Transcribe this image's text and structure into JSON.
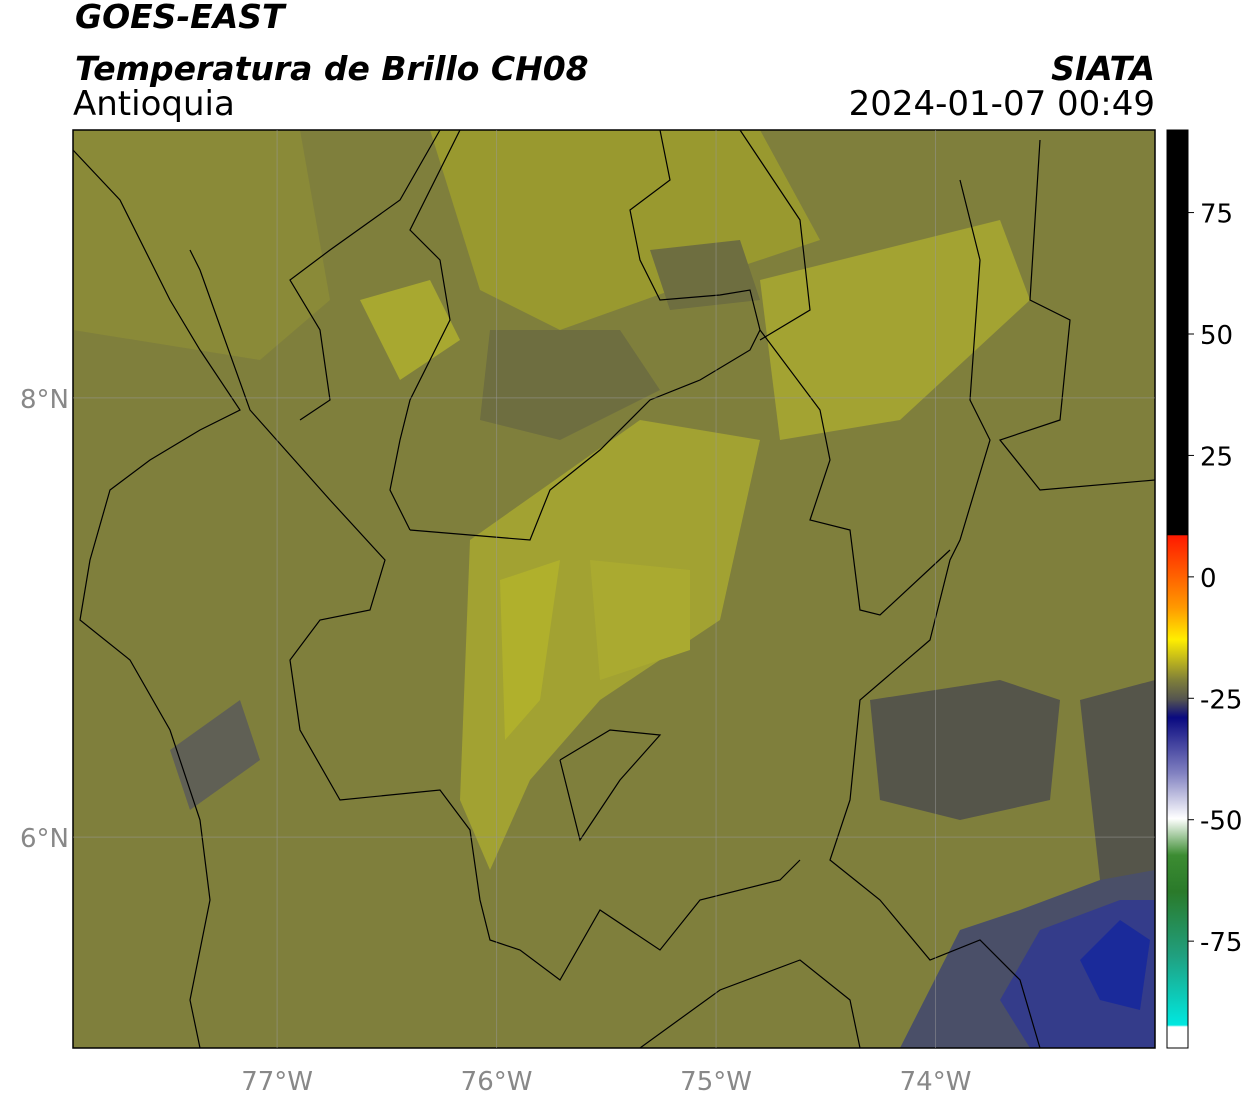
{
  "map": {
    "title": "GOES-EAST",
    "subtitle": "Temperatura de Brillo CH08",
    "region": "Antioquia",
    "source": "SIATA",
    "datetime": "2024-01-07 00:49",
    "xlim": [
      -77.93,
      -73.0
    ],
    "ylim": [
      5.04,
      9.22
    ],
    "xticks": [
      {
        "value": -77,
        "label": "77°W"
      },
      {
        "value": -76,
        "label": "76°W"
      },
      {
        "value": -75,
        "label": "75°W"
      },
      {
        "value": -74,
        "label": "74°W"
      }
    ],
    "yticks": [
      {
        "value": 8,
        "label": "8°N"
      },
      {
        "value": 6,
        "label": "6°N"
      }
    ],
    "grid": true,
    "colorbar": {
      "lim": [
        -97,
        92
      ],
      "ticks": [
        75,
        50,
        25,
        0,
        -25,
        -50,
        -75
      ]
    }
  }
}
